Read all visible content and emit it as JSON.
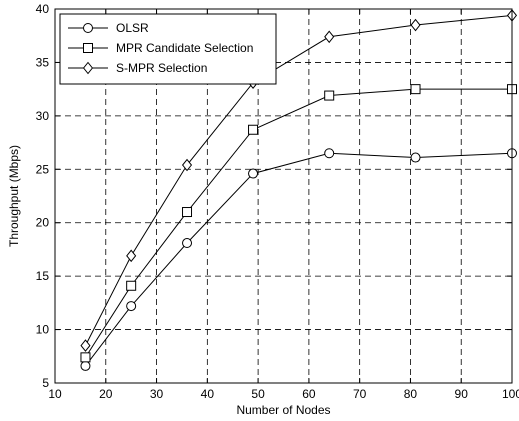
{
  "chart_data": {
    "type": "line",
    "title": "",
    "xlabel": "Number of Nodes",
    "ylabel": "Throughput (Mbps)",
    "xlim": [
      10,
      100
    ],
    "ylim": [
      5,
      40
    ],
    "xticks": [
      10,
      20,
      30,
      40,
      50,
      60,
      70,
      80,
      90,
      100
    ],
    "yticks": [
      5,
      10,
      15,
      20,
      25,
      30,
      35,
      40
    ],
    "grid": true,
    "legend_position": "top-left",
    "x": [
      16,
      25,
      36,
      49,
      64,
      81,
      100
    ],
    "series": [
      {
        "name": "OLSR",
        "marker": "circle",
        "values": [
          6.6,
          12.2,
          18.1,
          24.6,
          26.5,
          26.1,
          26.5
        ]
      },
      {
        "name": "MPR Candidate Selection",
        "marker": "square",
        "values": [
          7.4,
          14.1,
          21.0,
          28.7,
          31.9,
          32.5,
          32.5
        ]
      },
      {
        "name": "S-MPR Selection",
        "marker": "diamond",
        "values": [
          8.5,
          16.9,
          25.4,
          33.1,
          37.4,
          38.5,
          39.4
        ]
      }
    ]
  }
}
